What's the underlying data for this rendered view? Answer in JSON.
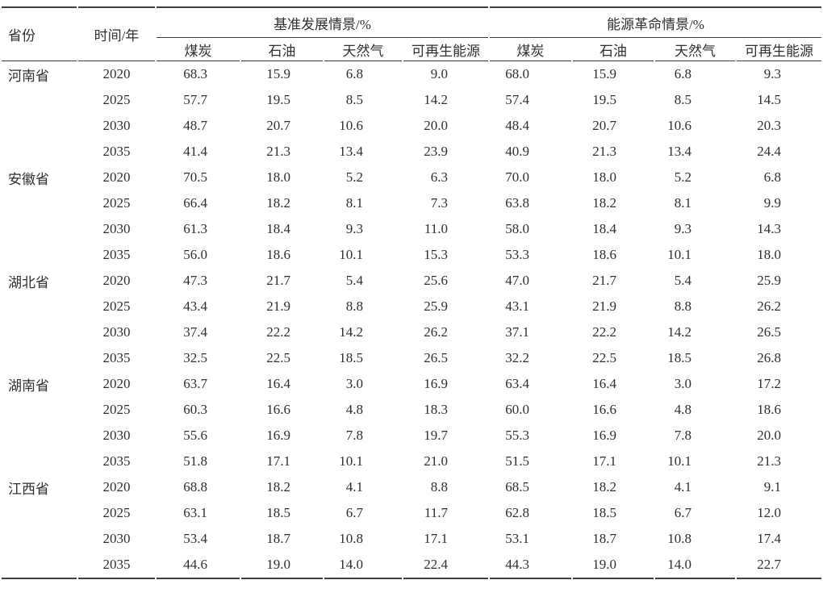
{
  "colors": {
    "text": "#2f2f2f",
    "rule": "#3e3e3e",
    "background": "#ffffff"
  },
  "table": {
    "headers": {
      "province": "省份",
      "time": "时间/年",
      "baseline_group": "基准发展情景/%",
      "revolution_group": "能源革命情景/%",
      "sub": [
        "煤炭",
        "石油",
        "天然气",
        "可再生能源"
      ]
    },
    "rows": [
      {
        "province": "河南省",
        "year": "2020",
        "baseline": [
          "68.3",
          "15.9",
          "6.8",
          "9.0"
        ],
        "revolution": [
          "68.0",
          "15.9",
          "6.8",
          "9.3"
        ]
      },
      {
        "province": "",
        "year": "2025",
        "baseline": [
          "57.7",
          "19.5",
          "8.5",
          "14.2"
        ],
        "revolution": [
          "57.4",
          "19.5",
          "8.5",
          "14.5"
        ]
      },
      {
        "province": "",
        "year": "2030",
        "baseline": [
          "48.7",
          "20.7",
          "10.6",
          "20.0"
        ],
        "revolution": [
          "48.4",
          "20.7",
          "10.6",
          "20.3"
        ]
      },
      {
        "province": "",
        "year": "2035",
        "baseline": [
          "41.4",
          "21.3",
          "13.4",
          "23.9"
        ],
        "revolution": [
          "40.9",
          "21.3",
          "13.4",
          "24.4"
        ]
      },
      {
        "province": "安徽省",
        "year": "2020",
        "baseline": [
          "70.5",
          "18.0",
          "5.2",
          "6.3"
        ],
        "revolution": [
          "70.0",
          "18.0",
          "5.2",
          "6.8"
        ]
      },
      {
        "province": "",
        "year": "2025",
        "baseline": [
          "66.4",
          "18.2",
          "8.1",
          "7.3"
        ],
        "revolution": [
          "63.8",
          "18.2",
          "8.1",
          "9.9"
        ]
      },
      {
        "province": "",
        "year": "2030",
        "baseline": [
          "61.3",
          "18.4",
          "9.3",
          "11.0"
        ],
        "revolution": [
          "58.0",
          "18.4",
          "9.3",
          "14.3"
        ]
      },
      {
        "province": "",
        "year": "2035",
        "baseline": [
          "56.0",
          "18.6",
          "10.1",
          "15.3"
        ],
        "revolution": [
          "53.3",
          "18.6",
          "10.1",
          "18.0"
        ]
      },
      {
        "province": "湖北省",
        "year": "2020",
        "baseline": [
          "47.3",
          "21.7",
          "5.4",
          "25.6"
        ],
        "revolution": [
          "47.0",
          "21.7",
          "5.4",
          "25.9"
        ]
      },
      {
        "province": "",
        "year": "2025",
        "baseline": [
          "43.4",
          "21.9",
          "8.8",
          "25.9"
        ],
        "revolution": [
          "43.1",
          "21.9",
          "8.8",
          "26.2"
        ]
      },
      {
        "province": "",
        "year": "2030",
        "baseline": [
          "37.4",
          "22.2",
          "14.2",
          "26.2"
        ],
        "revolution": [
          "37.1",
          "22.2",
          "14.2",
          "26.5"
        ]
      },
      {
        "province": "",
        "year": "2035",
        "baseline": [
          "32.5",
          "22.5",
          "18.5",
          "26.5"
        ],
        "revolution": [
          "32.2",
          "22.5",
          "18.5",
          "26.8"
        ]
      },
      {
        "province": "湖南省",
        "year": "2020",
        "baseline": [
          "63.7",
          "16.4",
          "3.0",
          "16.9"
        ],
        "revolution": [
          "63.4",
          "16.4",
          "3.0",
          "17.2"
        ]
      },
      {
        "province": "",
        "year": "2025",
        "baseline": [
          "60.3",
          "16.6",
          "4.8",
          "18.3"
        ],
        "revolution": [
          "60.0",
          "16.6",
          "4.8",
          "18.6"
        ]
      },
      {
        "province": "",
        "year": "2030",
        "baseline": [
          "55.6",
          "16.9",
          "7.8",
          "19.7"
        ],
        "revolution": [
          "55.3",
          "16.9",
          "7.8",
          "20.0"
        ]
      },
      {
        "province": "",
        "year": "2035",
        "baseline": [
          "51.8",
          "17.1",
          "10.1",
          "21.0"
        ],
        "revolution": [
          "51.5",
          "17.1",
          "10.1",
          "21.3"
        ]
      },
      {
        "province": "江西省",
        "year": "2020",
        "baseline": [
          "68.8",
          "18.2",
          "4.1",
          "8.8"
        ],
        "revolution": [
          "68.5",
          "18.2",
          "4.1",
          "9.1"
        ]
      },
      {
        "province": "",
        "year": "2025",
        "baseline": [
          "63.1",
          "18.5",
          "6.7",
          "11.7"
        ],
        "revolution": [
          "62.8",
          "18.5",
          "6.7",
          "12.0"
        ]
      },
      {
        "province": "",
        "year": "2030",
        "baseline": [
          "53.4",
          "18.7",
          "10.8",
          "17.1"
        ],
        "revolution": [
          "53.1",
          "18.7",
          "10.8",
          "17.4"
        ]
      },
      {
        "province": "",
        "year": "2035",
        "baseline": [
          "44.6",
          "19.0",
          "14.0",
          "22.4"
        ],
        "revolution": [
          "44.3",
          "19.0",
          "14.0",
          "22.7"
        ]
      }
    ]
  }
}
